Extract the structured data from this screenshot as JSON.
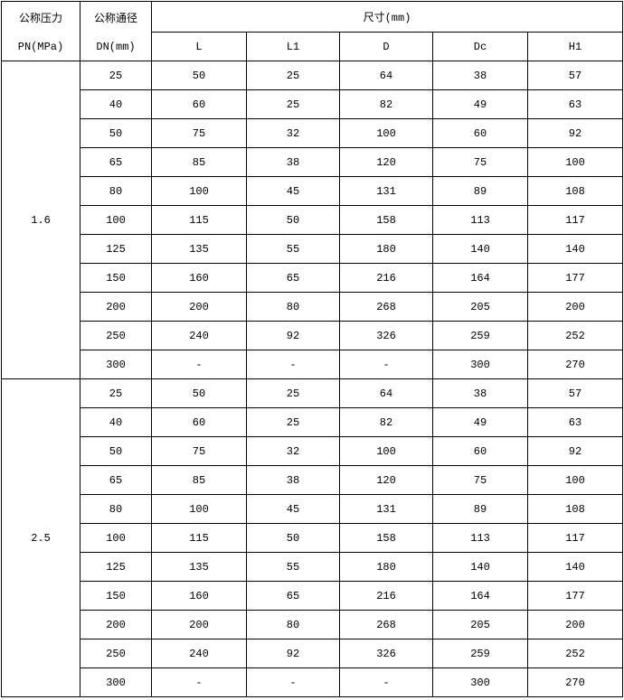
{
  "header": {
    "pressure_label": "公称压力",
    "pressure_unit": "PN(MPa)",
    "diameter_label": "公称通径",
    "diameter_unit": "DN(mm)",
    "dimensions_label": "尺寸(mm)",
    "columns": [
      "L",
      "L1",
      "D",
      "Dc",
      "H1"
    ]
  },
  "groups": [
    {
      "pn": "1.6",
      "rows": [
        [
          "25",
          "50",
          "25",
          "64",
          "38",
          "57"
        ],
        [
          "40",
          "60",
          "25",
          "82",
          "49",
          "63"
        ],
        [
          "50",
          "75",
          "32",
          "100",
          "60",
          "92"
        ],
        [
          "65",
          "85",
          "38",
          "120",
          "75",
          "100"
        ],
        [
          "80",
          "100",
          "45",
          "131",
          "89",
          "108"
        ],
        [
          "100",
          "115",
          "50",
          "158",
          "113",
          "117"
        ],
        [
          "125",
          "135",
          "55",
          "180",
          "140",
          "140"
        ],
        [
          "150",
          "160",
          "65",
          "216",
          "164",
          "177"
        ],
        [
          "200",
          "200",
          "80",
          "268",
          "205",
          "200"
        ],
        [
          "250",
          "240",
          "92",
          "326",
          "259",
          "252"
        ],
        [
          "300",
          "-",
          "-",
          "-",
          "300",
          "270"
        ]
      ]
    },
    {
      "pn": "2.5",
      "rows": [
        [
          "25",
          "50",
          "25",
          "64",
          "38",
          "57"
        ],
        [
          "40",
          "60",
          "25",
          "82",
          "49",
          "63"
        ],
        [
          "50",
          "75",
          "32",
          "100",
          "60",
          "92"
        ],
        [
          "65",
          "85",
          "38",
          "120",
          "75",
          "100"
        ],
        [
          "80",
          "100",
          "45",
          "131",
          "89",
          "108"
        ],
        [
          "100",
          "115",
          "50",
          "158",
          "113",
          "117"
        ],
        [
          "125",
          "135",
          "55",
          "180",
          "140",
          "140"
        ],
        [
          "150",
          "160",
          "65",
          "216",
          "164",
          "177"
        ],
        [
          "200",
          "200",
          "80",
          "268",
          "205",
          "200"
        ],
        [
          "250",
          "240",
          "92",
          "326",
          "259",
          "252"
        ],
        [
          "300",
          "-",
          "-",
          "-",
          "300",
          "270"
        ]
      ]
    }
  ]
}
